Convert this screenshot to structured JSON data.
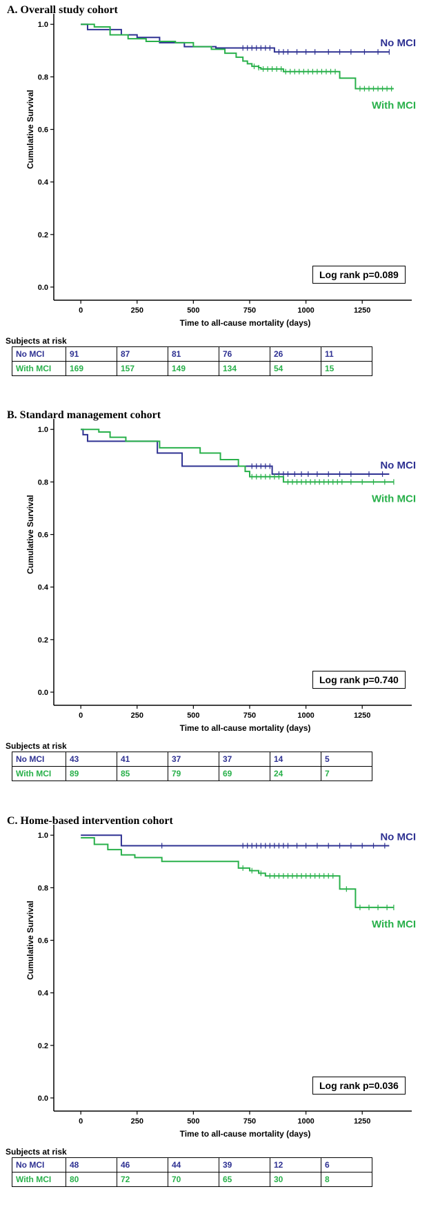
{
  "chart_data": [
    {
      "type": "line",
      "title": "A.  Overall study cohort",
      "xlabel": "Time to all-cause mortality (days)",
      "ylabel": "Cumulative Survival",
      "xlim": [
        -120,
        1470
      ],
      "ylim": [
        -0.05,
        1.04
      ],
      "x_ticks": [
        "0",
        "250",
        "500",
        "750",
        "1000",
        "1250"
      ],
      "y_ticks": [
        "0.0",
        "0.2",
        "0.4",
        "0.6",
        "0.8",
        "1.0"
      ],
      "annotation": "Log rank p=0.089",
      "series": [
        {
          "name": "No MCI",
          "color": "#2e3192",
          "x": [
            0,
            30,
            90,
            180,
            250,
            350,
            460,
            600,
            860,
            1370
          ],
          "y": [
            1.0,
            0.98,
            0.98,
            0.96,
            0.95,
            0.93,
            0.915,
            0.91,
            0.895,
            0.895
          ],
          "censor_x": [
            720,
            740,
            760,
            780,
            800,
            820,
            840,
            880,
            900,
            920,
            960,
            1000,
            1040,
            1100,
            1150,
            1200,
            1260,
            1320,
            1370
          ]
        },
        {
          "name": "With MCI",
          "color": "#28b04a",
          "x": [
            0,
            60,
            130,
            210,
            290,
            420,
            500,
            580,
            640,
            690,
            720,
            740,
            760,
            790,
            800,
            900,
            1010,
            1150,
            1220,
            1390
          ],
          "y": [
            1.0,
            0.99,
            0.96,
            0.945,
            0.935,
            0.93,
            0.915,
            0.905,
            0.89,
            0.875,
            0.86,
            0.85,
            0.84,
            0.835,
            0.83,
            0.82,
            0.82,
            0.795,
            0.755,
            0.755
          ],
          "censor_x": [
            770,
            790,
            810,
            830,
            850,
            870,
            890,
            910,
            930,
            950,
            970,
            990,
            1010,
            1030,
            1050,
            1070,
            1090,
            1110,
            1130,
            1240,
            1260,
            1280,
            1300,
            1320,
            1340,
            1360,
            1380
          ]
        }
      ],
      "risk_table": {
        "title": "Subjects at risk",
        "rows": [
          {
            "label": "No MCI",
            "color": "#2e3192",
            "values": [
              "91",
              "87",
              "81",
              "76",
              "26",
              "11"
            ]
          },
          {
            "label": "With MCI",
            "color": "#28b04a",
            "values": [
              "169",
              "157",
              "149",
              "134",
              "54",
              "15"
            ]
          }
        ]
      }
    },
    {
      "type": "line",
      "title": "B.  Standard management cohort",
      "xlabel": "Time to all-cause mortality (days)",
      "ylabel": "Cumulative Survival",
      "xlim": [
        -120,
        1470
      ],
      "ylim": [
        -0.05,
        1.04
      ],
      "x_ticks": [
        "0",
        "250",
        "500",
        "750",
        "1000",
        "1250"
      ],
      "y_ticks": [
        "0.0",
        "0.2",
        "0.4",
        "0.6",
        "0.8",
        "1.0"
      ],
      "annotation": "Log rank p=0.740",
      "series": [
        {
          "name": "No MCI",
          "color": "#2e3192",
          "x": [
            0,
            10,
            30,
            300,
            340,
            450,
            850,
            1370
          ],
          "y": [
            1.0,
            0.98,
            0.955,
            0.955,
            0.91,
            0.86,
            0.83,
            0.83
          ],
          "censor_x": [
            760,
            780,
            800,
            820,
            840,
            880,
            900,
            920,
            950,
            980,
            1010,
            1050,
            1100,
            1150,
            1200,
            1280,
            1340
          ]
        },
        {
          "name": "With MCI",
          "color": "#28b04a",
          "x": [
            0,
            80,
            130,
            200,
            350,
            530,
            620,
            700,
            730,
            750,
            900,
            1390
          ],
          "y": [
            1.0,
            0.99,
            0.97,
            0.955,
            0.93,
            0.91,
            0.885,
            0.86,
            0.84,
            0.82,
            0.8,
            0.8
          ],
          "censor_x": [
            760,
            780,
            800,
            820,
            840,
            860,
            880,
            920,
            940,
            960,
            980,
            1000,
            1020,
            1040,
            1060,
            1080,
            1100,
            1120,
            1140,
            1160,
            1200,
            1250,
            1300,
            1350,
            1390
          ]
        }
      ],
      "risk_table": {
        "title": "Subjects at risk",
        "rows": [
          {
            "label": "No MCI",
            "color": "#2e3192",
            "values": [
              "43",
              "41",
              "37",
              "37",
              "14",
              "5"
            ]
          },
          {
            "label": "With MCI",
            "color": "#28b04a",
            "values": [
              "89",
              "85",
              "79",
              "69",
              "24",
              "7"
            ]
          }
        ]
      }
    },
    {
      "type": "line",
      "title": "C.  Home-based intervention cohort",
      "xlabel": "Time to all-cause mortality (days)",
      "ylabel": "Cumulative Survival",
      "xlim": [
        -120,
        1470
      ],
      "ylim": [
        -0.05,
        1.04
      ],
      "x_ticks": [
        "0",
        "250",
        "500",
        "750",
        "1000",
        "1250"
      ],
      "y_ticks": [
        "0.0",
        "0.2",
        "0.4",
        "0.6",
        "0.8",
        "1.0"
      ],
      "annotation": "Log rank p=0.036",
      "series": [
        {
          "name": "No MCI",
          "color": "#2e3192",
          "x": [
            0,
            180,
            1370
          ],
          "y": [
            1.0,
            0.96,
            0.96
          ],
          "censor_x": [
            360,
            720,
            740,
            760,
            780,
            800,
            820,
            840,
            860,
            880,
            900,
            920,
            960,
            1000,
            1050,
            1100,
            1150,
            1200,
            1250,
            1300,
            1350
          ]
        },
        {
          "name": "With MCI",
          "color": "#28b04a",
          "x": [
            0,
            60,
            120,
            180,
            240,
            360,
            700,
            750,
            790,
            820,
            1150,
            1220,
            1390
          ],
          "y": [
            0.99,
            0.965,
            0.945,
            0.925,
            0.915,
            0.9,
            0.875,
            0.865,
            0.855,
            0.845,
            0.795,
            0.725,
            0.725
          ],
          "censor_x": [
            720,
            760,
            800,
            840,
            860,
            880,
            900,
            920,
            940,
            960,
            980,
            1000,
            1020,
            1040,
            1060,
            1080,
            1100,
            1120,
            1180,
            1240,
            1280,
            1320,
            1360,
            1390
          ]
        }
      ],
      "risk_table": {
        "title": "Subjects at risk",
        "rows": [
          {
            "label": "No MCI",
            "color": "#2e3192",
            "values": [
              "48",
              "46",
              "44",
              "39",
              "12",
              "6"
            ]
          },
          {
            "label": "With MCI",
            "color": "#28b04a",
            "values": [
              "80",
              "72",
              "70",
              "65",
              "30",
              "8"
            ]
          }
        ]
      }
    }
  ]
}
